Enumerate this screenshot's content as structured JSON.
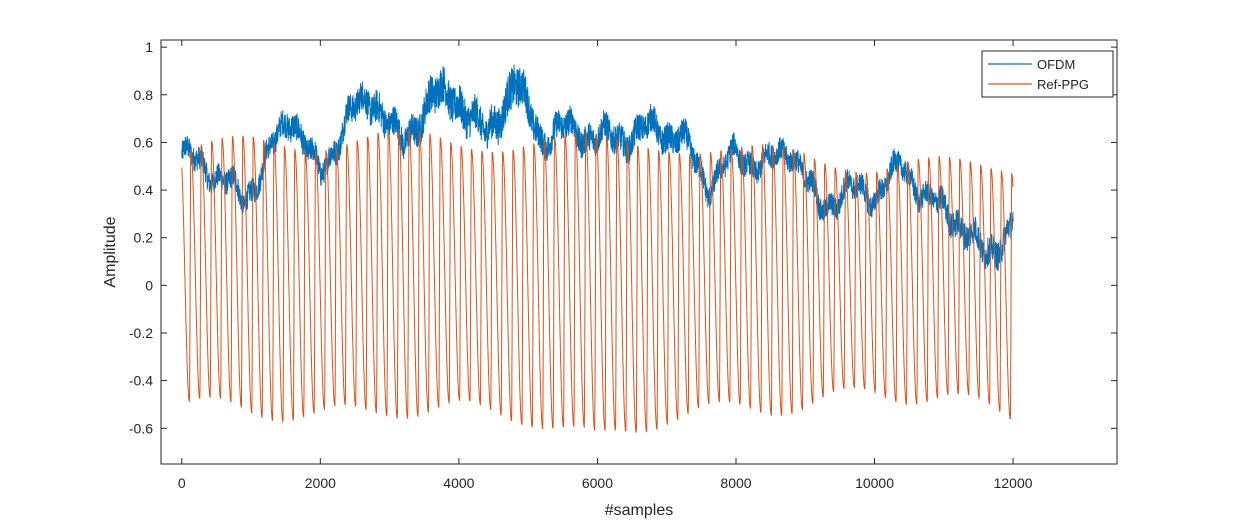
{
  "chart_data": {
    "type": "line",
    "title": "",
    "xlabel": "#samples",
    "ylabel": "Amplitude",
    "xlim": [
      -300,
      13500
    ],
    "ylim": [
      -0.75,
      1.03
    ],
    "x_ticks": [
      0,
      2000,
      4000,
      6000,
      8000,
      10000,
      12000
    ],
    "x_tick_labels": [
      "0",
      "2000",
      "4000",
      "6000",
      "8000",
      "10000",
      "12000"
    ],
    "y_ticks": [
      1,
      0.8,
      0.6,
      0.4,
      0.2,
      0,
      -0.2,
      -0.4,
      -0.6
    ],
    "y_tick_labels": [
      "1",
      "0.8",
      "0.6",
      "0.4",
      "0.2",
      "0",
      "-0.2",
      "-0.4",
      "-0.6"
    ],
    "grid": false,
    "legend": {
      "position": "top-right",
      "entries": [
        "OFDM",
        "Ref-PPG"
      ]
    },
    "series": [
      {
        "name": "OFDM",
        "color": "#0072BD",
        "note_style": "noisy trace sampled 0-12000",
        "x": [
          0,
          300,
          600,
          900,
          1200,
          1600,
          2000,
          2400,
          2800,
          3200,
          3600,
          4000,
          4400,
          4800,
          5200,
          5600,
          6000,
          6400,
          6800,
          7200,
          7600,
          8000,
          8400,
          8800,
          9200,
          9600,
          10000,
          10400,
          10800,
          11200,
          11600,
          12000
        ],
        "values": [
          0.55,
          0.5,
          0.45,
          0.35,
          0.52,
          0.72,
          0.45,
          0.72,
          0.78,
          0.58,
          0.8,
          0.78,
          0.62,
          0.85,
          0.62,
          0.66,
          0.62,
          0.62,
          0.66,
          0.62,
          0.42,
          0.55,
          0.5,
          0.58,
          0.32,
          0.4,
          0.38,
          0.5,
          0.35,
          0.28,
          0.12,
          0.25
        ],
        "noise_amplitude": [
          0.05,
          0.05,
          0.05,
          0.05,
          0.05,
          0.06,
          0.05,
          0.06,
          0.07,
          0.06,
          0.08,
          0.08,
          0.07,
          0.09,
          0.06,
          0.06,
          0.06,
          0.06,
          0.06,
          0.06,
          0.05,
          0.05,
          0.05,
          0.05,
          0.05,
          0.05,
          0.05,
          0.05,
          0.05,
          0.06,
          0.06,
          0.06
        ]
      },
      {
        "name": "Ref-PPG",
        "color": "#D95319",
        "period_samples": 150,
        "x": [
          0,
          1000,
          2000,
          3000,
          4000,
          5000,
          6000,
          7000,
          8000,
          9000,
          10000,
          11000,
          12000
        ],
        "peaks": [
          0.55,
          0.6,
          0.6,
          0.62,
          0.6,
          0.6,
          0.6,
          0.6,
          0.55,
          0.55,
          0.5,
          0.5,
          0.5
        ],
        "troughs": [
          -0.5,
          -0.52,
          -0.55,
          -0.52,
          -0.52,
          -0.55,
          -0.65,
          -0.55,
          -0.52,
          -0.5,
          -0.45,
          -0.47,
          -0.55
        ]
      }
    ]
  }
}
